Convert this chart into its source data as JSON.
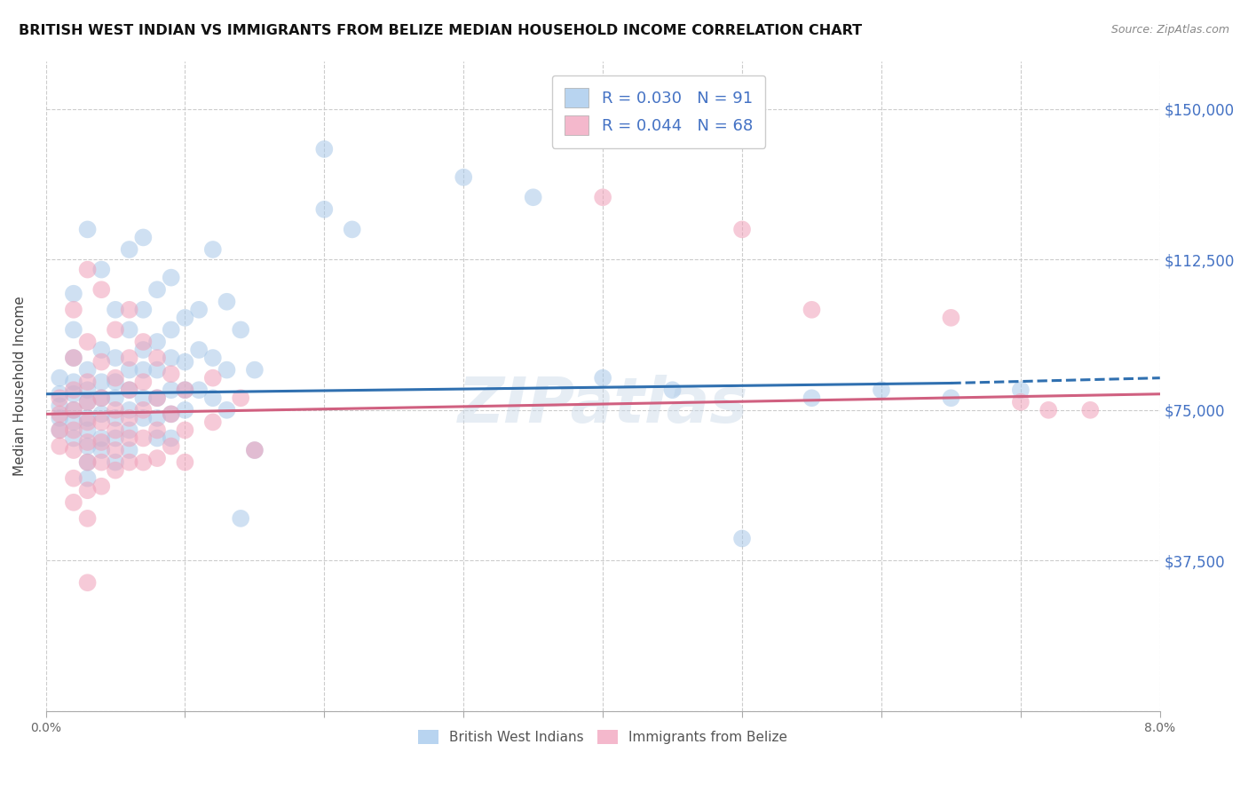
{
  "title": "BRITISH WEST INDIAN VS IMMIGRANTS FROM BELIZE MEDIAN HOUSEHOLD INCOME CORRELATION CHART",
  "source": "Source: ZipAtlas.com",
  "ylabel": "Median Household Income",
  "yticks": [
    0,
    37500,
    75000,
    112500,
    150000
  ],
  "ytick_labels": [
    "",
    "$37,500",
    "$75,000",
    "$112,500",
    "$150,000"
  ],
  "xlim": [
    0.0,
    0.08
  ],
  "ylim": [
    0,
    162000
  ],
  "legend_bottom": [
    "British West Indians",
    "Immigrants from Belize"
  ],
  "blue_color": "#a8c8e8",
  "pink_color": "#f0a0b8",
  "line_blue": "#3070b0",
  "line_pink": "#d06080",
  "background_color": "#ffffff",
  "grid_color": "#cccccc",
  "watermark": "ZIPatlas",
  "blue_scatter": [
    [
      0.001,
      79000
    ],
    [
      0.001,
      76000
    ],
    [
      0.001,
      73000
    ],
    [
      0.001,
      70000
    ],
    [
      0.001,
      83000
    ],
    [
      0.002,
      82000
    ],
    [
      0.002,
      79000
    ],
    [
      0.002,
      75000
    ],
    [
      0.002,
      72000
    ],
    [
      0.002,
      68000
    ],
    [
      0.002,
      88000
    ],
    [
      0.002,
      95000
    ],
    [
      0.002,
      104000
    ],
    [
      0.003,
      120000
    ],
    [
      0.003,
      85000
    ],
    [
      0.003,
      80000
    ],
    [
      0.003,
      77000
    ],
    [
      0.003,
      73000
    ],
    [
      0.003,
      70000
    ],
    [
      0.003,
      66000
    ],
    [
      0.003,
      62000
    ],
    [
      0.003,
      58000
    ],
    [
      0.004,
      110000
    ],
    [
      0.004,
      90000
    ],
    [
      0.004,
      82000
    ],
    [
      0.004,
      78000
    ],
    [
      0.004,
      74000
    ],
    [
      0.004,
      68000
    ],
    [
      0.004,
      65000
    ],
    [
      0.005,
      100000
    ],
    [
      0.005,
      88000
    ],
    [
      0.005,
      82000
    ],
    [
      0.005,
      78000
    ],
    [
      0.005,
      73000
    ],
    [
      0.005,
      68000
    ],
    [
      0.005,
      62000
    ],
    [
      0.006,
      115000
    ],
    [
      0.006,
      95000
    ],
    [
      0.006,
      85000
    ],
    [
      0.006,
      80000
    ],
    [
      0.006,
      75000
    ],
    [
      0.006,
      70000
    ],
    [
      0.006,
      65000
    ],
    [
      0.007,
      118000
    ],
    [
      0.007,
      100000
    ],
    [
      0.007,
      90000
    ],
    [
      0.007,
      85000
    ],
    [
      0.007,
      78000
    ],
    [
      0.007,
      73000
    ],
    [
      0.008,
      105000
    ],
    [
      0.008,
      92000
    ],
    [
      0.008,
      85000
    ],
    [
      0.008,
      78000
    ],
    [
      0.008,
      73000
    ],
    [
      0.008,
      68000
    ],
    [
      0.009,
      108000
    ],
    [
      0.009,
      95000
    ],
    [
      0.009,
      88000
    ],
    [
      0.009,
      80000
    ],
    [
      0.009,
      74000
    ],
    [
      0.009,
      68000
    ],
    [
      0.01,
      98000
    ],
    [
      0.01,
      87000
    ],
    [
      0.01,
      80000
    ],
    [
      0.01,
      75000
    ],
    [
      0.011,
      100000
    ],
    [
      0.011,
      90000
    ],
    [
      0.011,
      80000
    ],
    [
      0.012,
      115000
    ],
    [
      0.012,
      88000
    ],
    [
      0.012,
      78000
    ],
    [
      0.013,
      102000
    ],
    [
      0.013,
      85000
    ],
    [
      0.013,
      75000
    ],
    [
      0.014,
      95000
    ],
    [
      0.014,
      48000
    ],
    [
      0.015,
      85000
    ],
    [
      0.015,
      65000
    ],
    [
      0.02,
      140000
    ],
    [
      0.02,
      125000
    ],
    [
      0.022,
      120000
    ],
    [
      0.03,
      133000
    ],
    [
      0.035,
      128000
    ],
    [
      0.04,
      83000
    ],
    [
      0.045,
      80000
    ],
    [
      0.05,
      43000
    ],
    [
      0.055,
      78000
    ],
    [
      0.06,
      80000
    ],
    [
      0.065,
      78000
    ],
    [
      0.07,
      80000
    ]
  ],
  "pink_scatter": [
    [
      0.001,
      78000
    ],
    [
      0.001,
      74000
    ],
    [
      0.001,
      70000
    ],
    [
      0.001,
      66000
    ],
    [
      0.002,
      100000
    ],
    [
      0.002,
      88000
    ],
    [
      0.002,
      80000
    ],
    [
      0.002,
      75000
    ],
    [
      0.002,
      70000
    ],
    [
      0.002,
      65000
    ],
    [
      0.002,
      58000
    ],
    [
      0.002,
      52000
    ],
    [
      0.003,
      110000
    ],
    [
      0.003,
      92000
    ],
    [
      0.003,
      82000
    ],
    [
      0.003,
      77000
    ],
    [
      0.003,
      72000
    ],
    [
      0.003,
      67000
    ],
    [
      0.003,
      62000
    ],
    [
      0.003,
      55000
    ],
    [
      0.003,
      48000
    ],
    [
      0.003,
      32000
    ],
    [
      0.004,
      105000
    ],
    [
      0.004,
      87000
    ],
    [
      0.004,
      78000
    ],
    [
      0.004,
      72000
    ],
    [
      0.004,
      67000
    ],
    [
      0.004,
      62000
    ],
    [
      0.004,
      56000
    ],
    [
      0.005,
      95000
    ],
    [
      0.005,
      83000
    ],
    [
      0.005,
      75000
    ],
    [
      0.005,
      70000
    ],
    [
      0.005,
      65000
    ],
    [
      0.005,
      60000
    ],
    [
      0.006,
      100000
    ],
    [
      0.006,
      88000
    ],
    [
      0.006,
      80000
    ],
    [
      0.006,
      73000
    ],
    [
      0.006,
      68000
    ],
    [
      0.006,
      62000
    ],
    [
      0.007,
      92000
    ],
    [
      0.007,
      82000
    ],
    [
      0.007,
      75000
    ],
    [
      0.007,
      68000
    ],
    [
      0.007,
      62000
    ],
    [
      0.008,
      88000
    ],
    [
      0.008,
      78000
    ],
    [
      0.008,
      70000
    ],
    [
      0.008,
      63000
    ],
    [
      0.009,
      84000
    ],
    [
      0.009,
      74000
    ],
    [
      0.009,
      66000
    ],
    [
      0.01,
      80000
    ],
    [
      0.01,
      70000
    ],
    [
      0.01,
      62000
    ],
    [
      0.012,
      83000
    ],
    [
      0.012,
      72000
    ],
    [
      0.014,
      78000
    ],
    [
      0.015,
      65000
    ],
    [
      0.04,
      128000
    ],
    [
      0.05,
      120000
    ],
    [
      0.055,
      100000
    ],
    [
      0.065,
      98000
    ],
    [
      0.07,
      77000
    ],
    [
      0.072,
      75000
    ],
    [
      0.075,
      75000
    ]
  ]
}
